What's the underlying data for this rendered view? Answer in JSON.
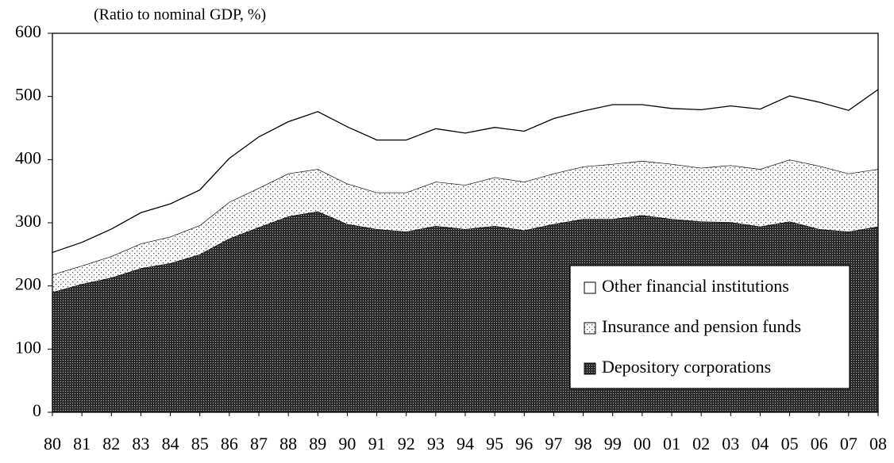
{
  "chart_data": {
    "type": "stacked_area",
    "title": "(Ratio to nominal GDP, %)",
    "categories": [
      "80",
      "81",
      "82",
      "83",
      "84",
      "85",
      "86",
      "87",
      "88",
      "89",
      "90",
      "91",
      "92",
      "93",
      "94",
      "95",
      "96",
      "97",
      "98",
      "99",
      "00",
      "01",
      "02",
      "03",
      "04",
      "05",
      "06",
      "07",
      "08"
    ],
    "series": [
      {
        "name": "Depository corporations",
        "color": "#2b2b2b",
        "pattern": "dense",
        "values": [
          190,
          203,
          213,
          228,
          236,
          250,
          275,
          293,
          310,
          318,
          298,
          290,
          286,
          295,
          290,
          295,
          288,
          298,
          306,
          306,
          312,
          306,
          302,
          301,
          294,
          302,
          290,
          286,
          294
        ]
      },
      {
        "name": "Insurance and pension funds",
        "color": "#555555",
        "pattern": "dots",
        "values": [
          28,
          29,
          34,
          39,
          42,
          46,
          58,
          62,
          68,
          67,
          64,
          58,
          62,
          70,
          70,
          77,
          77,
          80,
          83,
          87,
          86,
          87,
          85,
          90,
          91,
          98,
          100,
          92,
          91
        ]
      },
      {
        "name": "Other financial institutions",
        "color": "#ffffff",
        "pattern": "none",
        "values": [
          35,
          37,
          43,
          49,
          52,
          56,
          69,
          81,
          82,
          91,
          90,
          83,
          83,
          84,
          82,
          79,
          80,
          87,
          88,
          94,
          89,
          88,
          92,
          94,
          95,
          101,
          101,
          100,
          126
        ]
      }
    ],
    "ylim": [
      0,
      600
    ],
    "yticks": [
      0,
      100,
      200,
      300,
      400,
      500,
      600
    ],
    "legend": "lower-right",
    "grid": false
  }
}
